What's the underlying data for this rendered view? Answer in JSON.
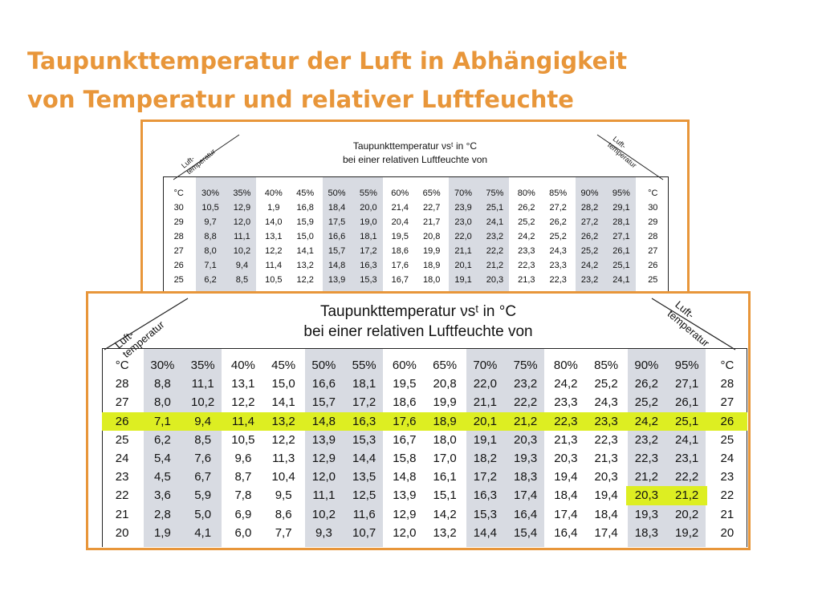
{
  "title": {
    "line1": "Taupunkttemperatur der Luft in Abhängigkeit",
    "line2": "von Temperatur und relativer Luftfeuchte"
  },
  "table_header": {
    "left_label_1": "Luft-",
    "left_label_2": "temperatur",
    "right_label_1": "Luft-",
    "right_label_2": "temperatur",
    "heading_line1": "Taupunkttemperatur νsᵗ in °C",
    "heading_line2": "bei einer relativen Luftfeuchte von"
  },
  "columns": [
    "°C",
    "30%",
    "35%",
    "40%",
    "45%",
    "50%",
    "55%",
    "60%",
    "65%",
    "70%",
    "75%",
    "80%",
    "85%",
    "90%",
    "95%",
    "°C"
  ],
  "back_table_rows": [
    [
      "30",
      "10,5",
      "12,9",
      "1,9",
      "16,8",
      "18,4",
      "20,0",
      "21,4",
      "22,7",
      "23,9",
      "25,1",
      "26,2",
      "27,2",
      "28,2",
      "29,1",
      "30"
    ],
    [
      "29",
      "9,7",
      "12,0",
      "14,0",
      "15,9",
      "17,5",
      "19,0",
      "20,4",
      "21,7",
      "23,0",
      "24,1",
      "25,2",
      "26,2",
      "27,2",
      "28,1",
      "29"
    ],
    [
      "28",
      "8,8",
      "11,1",
      "13,1",
      "15,0",
      "16,6",
      "18,1",
      "19,5",
      "20,8",
      "22,0",
      "23,2",
      "24,2",
      "25,2",
      "26,2",
      "27,1",
      "28"
    ],
    [
      "27",
      "8,0",
      "10,2",
      "12,2",
      "14,1",
      "15,7",
      "17,2",
      "18,6",
      "19,9",
      "21,1",
      "22,2",
      "23,3",
      "24,3",
      "25,2",
      "26,1",
      "27"
    ],
    [
      "26",
      "7,1",
      "9,4",
      "11,4",
      "13,2",
      "14,8",
      "16,3",
      "17,6",
      "18,9",
      "20,1",
      "21,2",
      "22,3",
      "23,3",
      "24,2",
      "25,1",
      "26"
    ],
    [
      "25",
      "6,2",
      "8,5",
      "10,5",
      "12,2",
      "13,9",
      "15,3",
      "16,7",
      "18,0",
      "19,1",
      "20,3",
      "21,3",
      "22,3",
      "23,2",
      "24,1",
      "25"
    ]
  ],
  "front_table_rows": [
    [
      "28",
      "8,8",
      "11,1",
      "13,1",
      "15,0",
      "16,6",
      "18,1",
      "19,5",
      "20,8",
      "22,0",
      "23,2",
      "24,2",
      "25,2",
      "26,2",
      "27,1",
      "28"
    ],
    [
      "27",
      "8,0",
      "10,2",
      "12,2",
      "14,1",
      "15,7",
      "17,2",
      "18,6",
      "19,9",
      "21,1",
      "22,2",
      "23,3",
      "24,3",
      "25,2",
      "26,1",
      "27"
    ],
    [
      "26",
      "7,1",
      "9,4",
      "11,4",
      "13,2",
      "14,8",
      "16,3",
      "17,6",
      "18,9",
      "20,1",
      "21,2",
      "22,3",
      "23,3",
      "24,2",
      "25,1",
      "26"
    ],
    [
      "25",
      "6,2",
      "8,5",
      "10,5",
      "12,2",
      "13,9",
      "15,3",
      "16,7",
      "18,0",
      "19,1",
      "20,3",
      "21,3",
      "22,3",
      "23,2",
      "24,1",
      "25"
    ],
    [
      "24",
      "5,4",
      "7,6",
      "9,6",
      "11,3",
      "12,9",
      "14,4",
      "15,8",
      "17,0",
      "18,2",
      "19,3",
      "20,3",
      "21,3",
      "22,3",
      "23,1",
      "24"
    ],
    [
      "23",
      "4,5",
      "6,7",
      "8,7",
      "10,4",
      "12,0",
      "13,5",
      "14,8",
      "16,1",
      "17,2",
      "18,3",
      "19,4",
      "20,3",
      "21,2",
      "22,2",
      "23"
    ],
    [
      "22",
      "3,6",
      "5,9",
      "7,8",
      "9,5",
      "11,1",
      "12,5",
      "13,9",
      "15,1",
      "16,3",
      "17,4",
      "18,4",
      "19,4",
      "20,3",
      "21,2",
      "22"
    ],
    [
      "21",
      "2,8",
      "5,0",
      "6,9",
      "8,6",
      "10,2",
      "11,6",
      "12,9",
      "14,2",
      "15,3",
      "16,4",
      "17,4",
      "18,4",
      "19,3",
      "20,2",
      "21"
    ],
    [
      "20",
      "1,9",
      "4,1",
      "6,0",
      "7,7",
      "9,3",
      "10,7",
      "12,0",
      "13,2",
      "14,4",
      "15,4",
      "16,4",
      "17,4",
      "18,3",
      "19,2",
      "20"
    ]
  ],
  "highlight": {
    "row_temperature": "26",
    "cell_temperature": "22",
    "cell_columns": [
      "90%",
      "95%"
    ]
  },
  "colors": {
    "accent_orange": "#e8963a",
    "highlight_yellow": "#ddee22",
    "column_shade": "#d8dbe2"
  }
}
